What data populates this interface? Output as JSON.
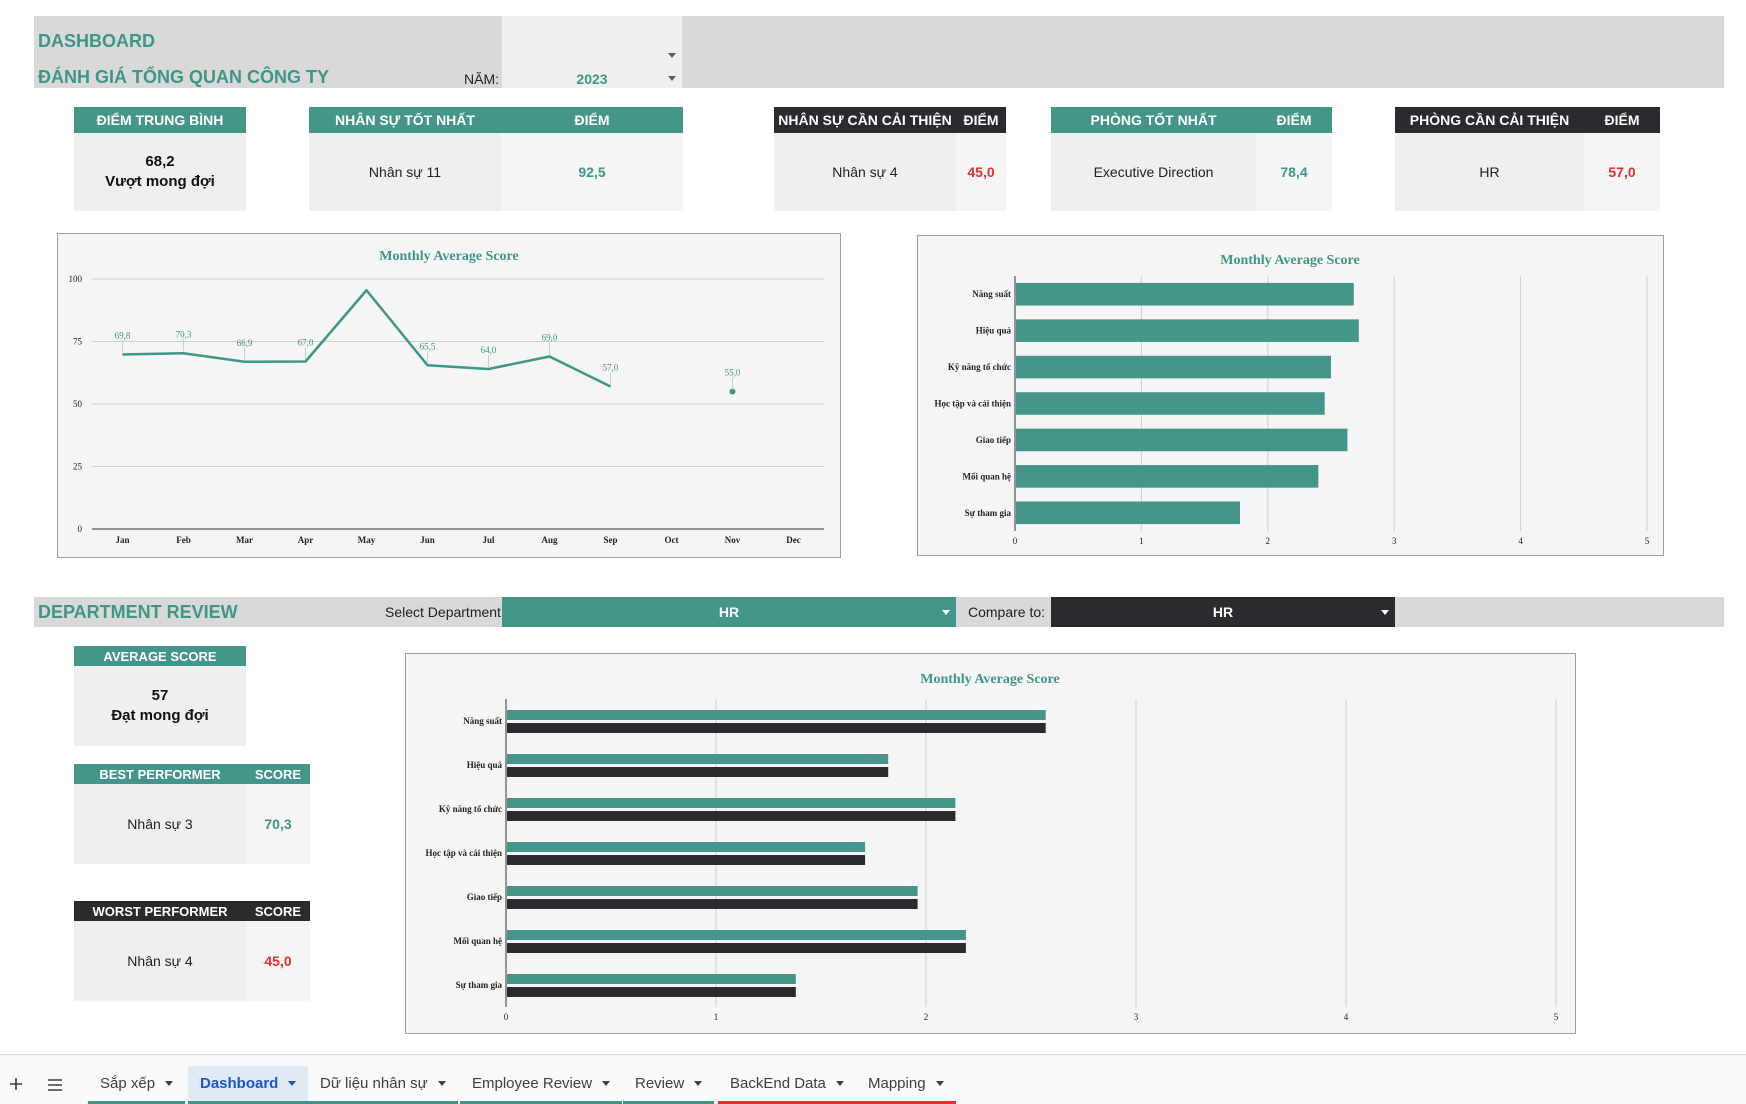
{
  "header": {
    "title": "DASHBOARD",
    "subtitle": "ĐÁNH GIÁ TỔNG QUAN CÔNG TY",
    "year_label": "NĂM:",
    "year_value": "2023"
  },
  "kpis": {
    "avg": {
      "header": "ĐIỂM TRUNG BÌNH",
      "score": "68,2",
      "rating": "Vượt mong đợi"
    },
    "best_staff": {
      "header": "NHÂN SỰ TỐT NHẤT",
      "score_header": "ĐIỂM",
      "name": "Nhân sự 11",
      "score": "92,5"
    },
    "improve_staff": {
      "header": "NHÂN SỰ CẦN CẢI THIỆN",
      "score_header": "ĐIỂM",
      "name": "Nhân sự 4",
      "score": "45,0"
    },
    "best_dept": {
      "header": "PHÒNG TỐT NHẤT",
      "score_header": "ĐIỂM",
      "name": "Executive Direction",
      "score": "78,4"
    },
    "improve_dept": {
      "header": "PHÒNG CẦN CẢI THIỆN",
      "score_header": "ĐIỂM",
      "name": "HR",
      "score": "57,0"
    }
  },
  "department_review": {
    "title": "DEPARTMENT REVIEW",
    "select_label": "Select Department:",
    "select_value": "HR",
    "compare_label": "Compare to:",
    "compare_value": "HR",
    "avg": {
      "header": "AVERAGE SCORE",
      "score": "57",
      "rating": "Đạt mong đợi"
    },
    "best": {
      "header": "BEST PERFORMER",
      "score_header": "SCORE",
      "name": "Nhân sự 3",
      "score": "70,3"
    },
    "worst": {
      "header": "WORST PERFORMER",
      "score_header": "SCORE",
      "name": "Nhân sự 4",
      "score": "45,0"
    }
  },
  "colors": {
    "teal": "#439689",
    "dark": "#2b2b2f",
    "red": "#e0312b",
    "band": "#d9d9d9"
  },
  "tabs": {
    "add_icon": "plus-icon",
    "menu_icon": "menu-icon",
    "items": [
      {
        "label": "Sắp xếp"
      },
      {
        "label": "Dashboard"
      },
      {
        "label": "Dữ liệu nhân sự"
      },
      {
        "label": "Employee Review"
      },
      {
        "label": "Review"
      },
      {
        "label": "BackEnd Data"
      },
      {
        "label": "Mapping"
      }
    ],
    "active": "Dashboard"
  },
  "chart_data": [
    {
      "type": "line",
      "title": "Monthly Average Score",
      "categories": [
        "Jan",
        "Feb",
        "Mar",
        "Apr",
        "May",
        "Jun",
        "Jul",
        "Aug",
        "Sep",
        "Oct",
        "Nov",
        "Dec"
      ],
      "values": [
        69.8,
        70.3,
        66.9,
        67.0,
        95.5,
        65.5,
        64.0,
        69.0,
        57.0,
        null,
        55.0,
        null
      ],
      "labels": [
        "69,8",
        "70,3",
        "66,9",
        "67,0",
        "",
        "65,5",
        "64,0",
        "69,0",
        "57,0",
        "",
        "55,0",
        ""
      ],
      "yticks": [
        "0",
        "25",
        "50",
        "75",
        "100"
      ],
      "ylim": [
        0,
        100
      ],
      "grid": true,
      "legend": "none"
    },
    {
      "type": "bar",
      "orientation": "horizontal",
      "title": "Monthly Average Score",
      "categories": [
        "Năng suất",
        "Hiệu quả",
        "Kỹ năng tổ chức",
        "Học tập và cải thiện",
        "Giao tiếp",
        "Mối quan hệ",
        "Sự tham gia"
      ],
      "values": [
        2.68,
        2.72,
        2.5,
        2.45,
        2.63,
        2.4,
        1.78
      ],
      "xticks": [
        "0",
        "1",
        "2",
        "3",
        "4",
        "5"
      ],
      "xlim": [
        0,
        5
      ],
      "grid": true,
      "legend": "none"
    },
    {
      "type": "bar",
      "orientation": "horizontal",
      "title": "Monthly Average Score",
      "categories": [
        "Năng suất",
        "Hiệu quả",
        "Kỹ năng tổ chức",
        "Học tập và cải thiện",
        "Giao tiếp",
        "Mối quan hệ",
        "Sự tham gia"
      ],
      "series": [
        {
          "values": [
            2.57,
            1.82,
            2.14,
            1.71,
            1.96,
            2.19,
            1.38
          ],
          "color": "#439689"
        },
        {
          "values": [
            2.57,
            1.82,
            2.14,
            1.71,
            1.96,
            2.19,
            1.38
          ],
          "color": "#2b2b2f"
        }
      ],
      "xticks": [
        "0",
        "1",
        "2",
        "3",
        "4",
        "5"
      ],
      "xlim": [
        0,
        5
      ],
      "grid": true,
      "legend": "none"
    }
  ]
}
